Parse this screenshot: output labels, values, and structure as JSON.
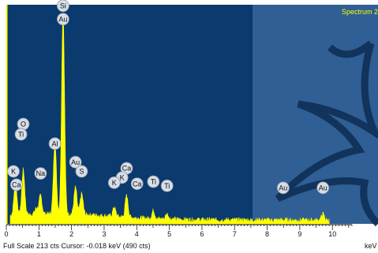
{
  "spectrum_title": "Spectrum 2",
  "status_bar": "Full Scale 213 cts  Cursor: -0.018 keV (490 cts)",
  "x_unit_label": "keV",
  "colors": {
    "plot_background": "#0a3a6e",
    "watermark_panel": "#2f5f94",
    "spectrum_fill": "#ffff00",
    "cursor_line": "#ffff00",
    "title_text": "#ffff00"
  },
  "chart_data": {
    "type": "area",
    "title": "Spectrum 2",
    "xlabel": "keV",
    "ylabel": "",
    "xlim": [
      0,
      10.6
    ],
    "ylim": [
      0,
      213
    ],
    "x_ticks": [
      0,
      1,
      2,
      3,
      4,
      5,
      6,
      7,
      8,
      9,
      10
    ],
    "grid": false,
    "cursor_keV": -0.018,
    "peaks": [
      {
        "energy_keV": 0.28,
        "counts": 33
      },
      {
        "energy_keV": 0.52,
        "counts": 44
      },
      {
        "energy_keV": 0.92,
        "counts": 6
      },
      {
        "energy_keV": 1.05,
        "counts": 18
      },
      {
        "energy_keV": 1.49,
        "counts": 70
      },
      {
        "energy_keV": 1.74,
        "counts": 196
      },
      {
        "energy_keV": 2.12,
        "counts": 26
      },
      {
        "energy_keV": 2.31,
        "counts": 20
      },
      {
        "energy_keV": 3.31,
        "counts": 9
      },
      {
        "energy_keV": 3.69,
        "counts": 21
      },
      {
        "energy_keV": 4.51,
        "counts": 8
      },
      {
        "energy_keV": 4.93,
        "counts": 5
      },
      {
        "energy_keV": 9.71,
        "counts": 6
      }
    ],
    "element_labels": [
      {
        "text": "Si",
        "energy_keV": 1.74,
        "counts": 212
      },
      {
        "text": "Au",
        "energy_keV": 1.74,
        "counts": 199
      },
      {
        "text": "O",
        "energy_keV": 0.52,
        "counts": 97
      },
      {
        "text": "Ti",
        "energy_keV": 0.45,
        "counts": 87
      },
      {
        "text": "Al",
        "energy_keV": 1.49,
        "counts": 78
      },
      {
        "text": "Au",
        "energy_keV": 2.12,
        "counts": 60
      },
      {
        "text": "K",
        "energy_keV": 0.22,
        "counts": 51
      },
      {
        "text": "S",
        "energy_keV": 2.31,
        "counts": 51
      },
      {
        "text": "Ca",
        "energy_keV": 3.69,
        "counts": 54
      },
      {
        "text": "Na",
        "energy_keV": 1.05,
        "counts": 49
      },
      {
        "text": "K",
        "energy_keV": 3.55,
        "counts": 45
      },
      {
        "text": "K",
        "energy_keV": 3.31,
        "counts": 40
      },
      {
        "text": "Ca",
        "energy_keV": 0.31,
        "counts": 38
      },
      {
        "text": "Ca",
        "energy_keV": 4.01,
        "counts": 39
      },
      {
        "text": "Ti",
        "energy_keV": 4.51,
        "counts": 41
      },
      {
        "text": "Ti",
        "energy_keV": 4.93,
        "counts": 37
      },
      {
        "text": "Au",
        "energy_keV": 8.49,
        "counts": 35
      },
      {
        "text": "Au",
        "energy_keV": 9.71,
        "counts": 35
      }
    ]
  }
}
